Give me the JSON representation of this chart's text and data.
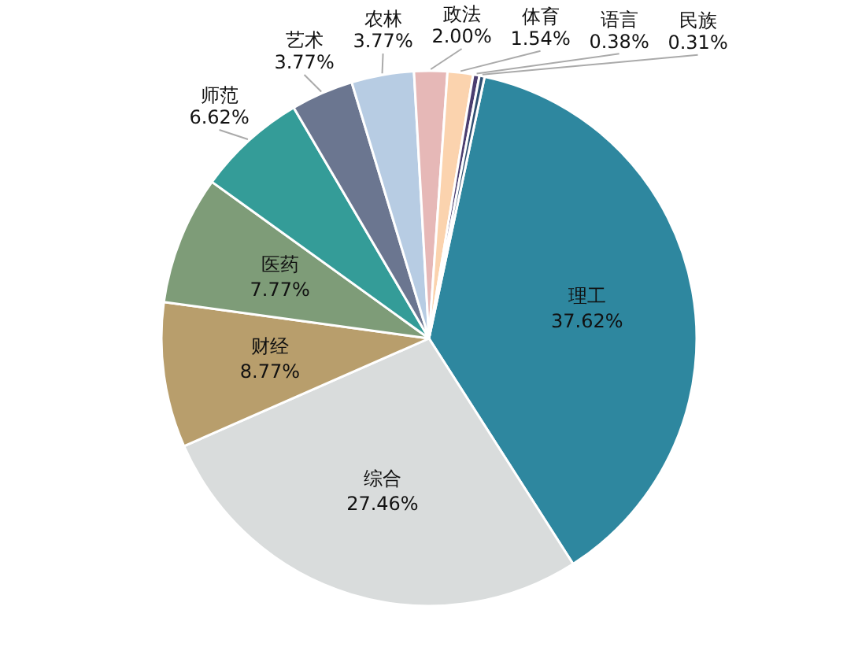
{
  "chart_data": {
    "type": "pie",
    "categories": [
      "理工",
      "综合",
      "财经",
      "医药",
      "师范",
      "艺术",
      "农林",
      "政法",
      "体育",
      "语言",
      "民族"
    ],
    "values": [
      37.62,
      27.46,
      8.77,
      7.77,
      6.62,
      3.77,
      3.77,
      2.0,
      1.54,
      0.38,
      0.31
    ],
    "colors": [
      "#2e879f",
      "#d9dcdc",
      "#b89e6c",
      "#7e9c78",
      "#349c98",
      "#6b7690",
      "#b7cce3",
      "#e6b8b7",
      "#fbd3ae",
      "#4b3e70",
      "#2f4f72"
    ],
    "value_labels": [
      "37.62%",
      "27.46%",
      "8.77%",
      "7.77%",
      "6.62%",
      "3.77%",
      "3.77%",
      "2.00%",
      "1.54%",
      "0.38%",
      "0.31%"
    ],
    "legend": false
  }
}
